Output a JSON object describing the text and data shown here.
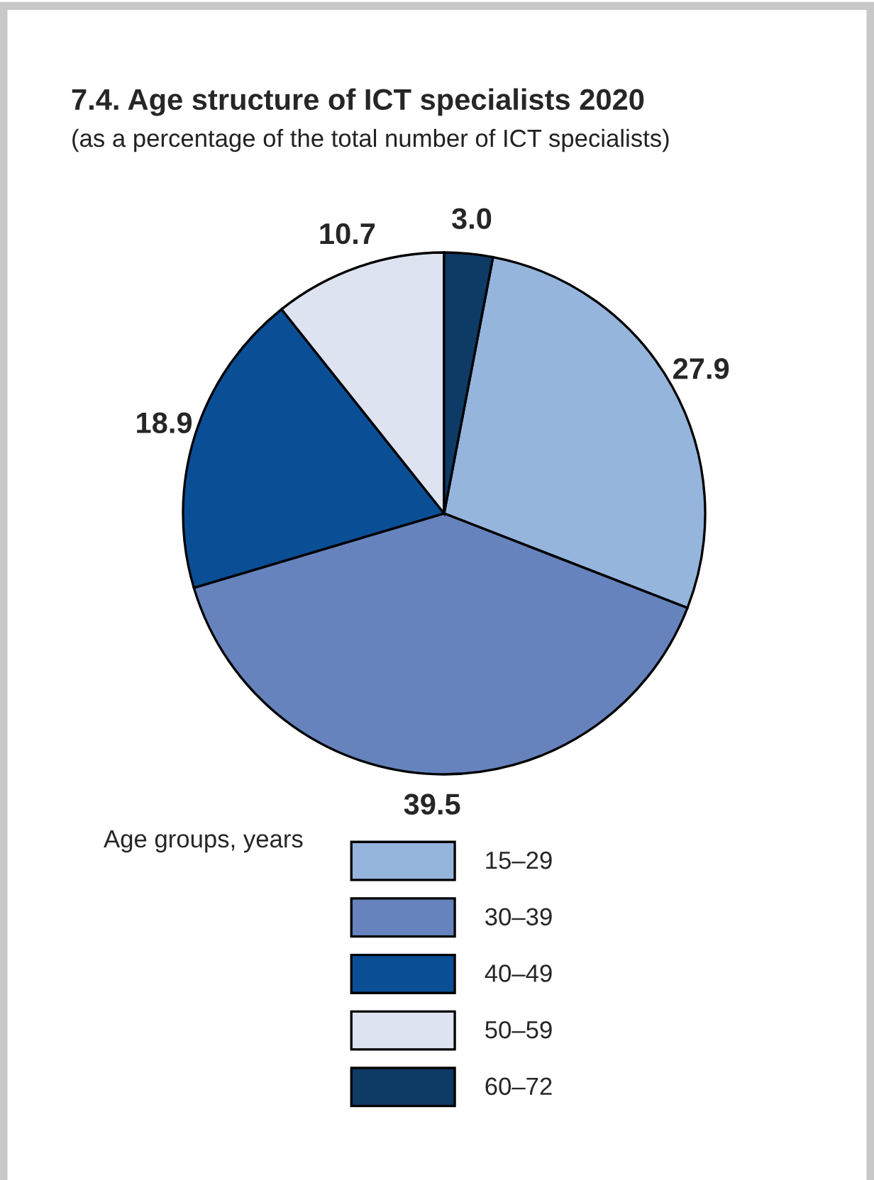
{
  "chart_data": {
    "type": "pie",
    "title": "7.4. Age structure of ICT specialists 2020",
    "subtitle": "(as a percentage of the total number of ICT specialists)",
    "legend_title": "Age groups, years",
    "categories": [
      "15–29",
      "30–39",
      "40–49",
      "50–59",
      "60–72"
    ],
    "values": [
      27.9,
      39.5,
      18.9,
      10.7,
      3.0
    ],
    "colors": [
      "#95b5dc",
      "#6683bd",
      "#0a4f96",
      "#dde3f0",
      "#0e3b66"
    ],
    "value_labels": [
      "27.9",
      "39.5",
      "18.9",
      "10.7",
      "3.0"
    ],
    "legend": "bottom"
  }
}
